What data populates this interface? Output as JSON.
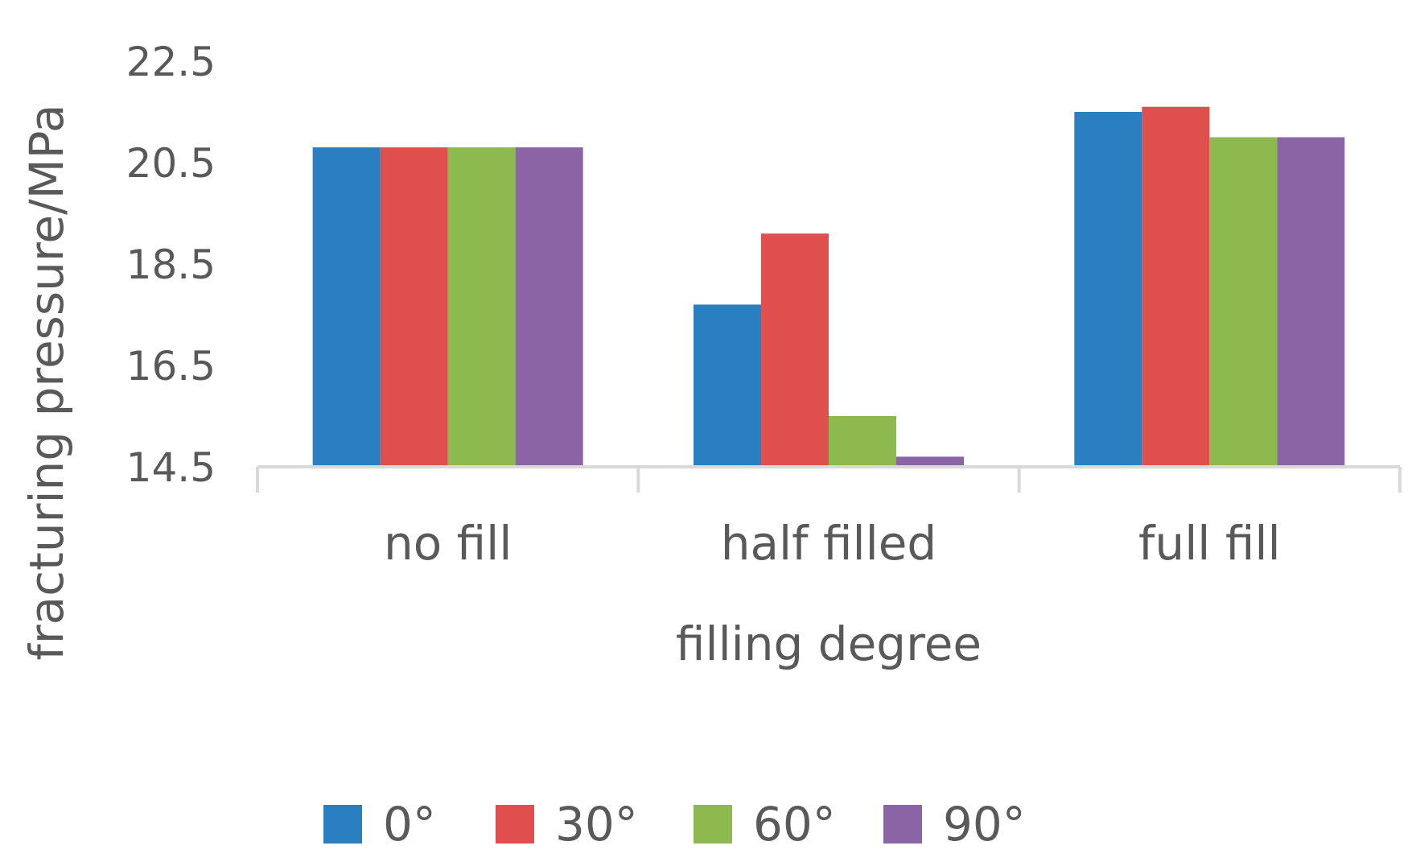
{
  "chart_data": {
    "type": "bar",
    "title": "",
    "xlabel": "filling degree",
    "ylabel": "fracturing pressure/MPa",
    "categories": [
      "no fill",
      "half filled",
      "full fill"
    ],
    "series": [
      {
        "name": "0°",
        "color": "#2a7fc0",
        "values": [
          20.8,
          17.7,
          21.5
        ]
      },
      {
        "name": "30°",
        "color": "#de4f4e",
        "values": [
          20.8,
          19.1,
          21.6
        ]
      },
      {
        "name": "60°",
        "color": "#8cba4f",
        "values": [
          20.8,
          15.5,
          21.0
        ]
      },
      {
        "name": "90°",
        "color": "#8a64a5",
        "values": [
          20.8,
          14.7,
          21.0
        ]
      }
    ],
    "yticks": [
      "14.5",
      "16.5",
      "18.5",
      "20.5",
      "22.5"
    ],
    "ylim": [
      14.5,
      22.5
    ],
    "grid": false,
    "legend_position": "bottom"
  }
}
